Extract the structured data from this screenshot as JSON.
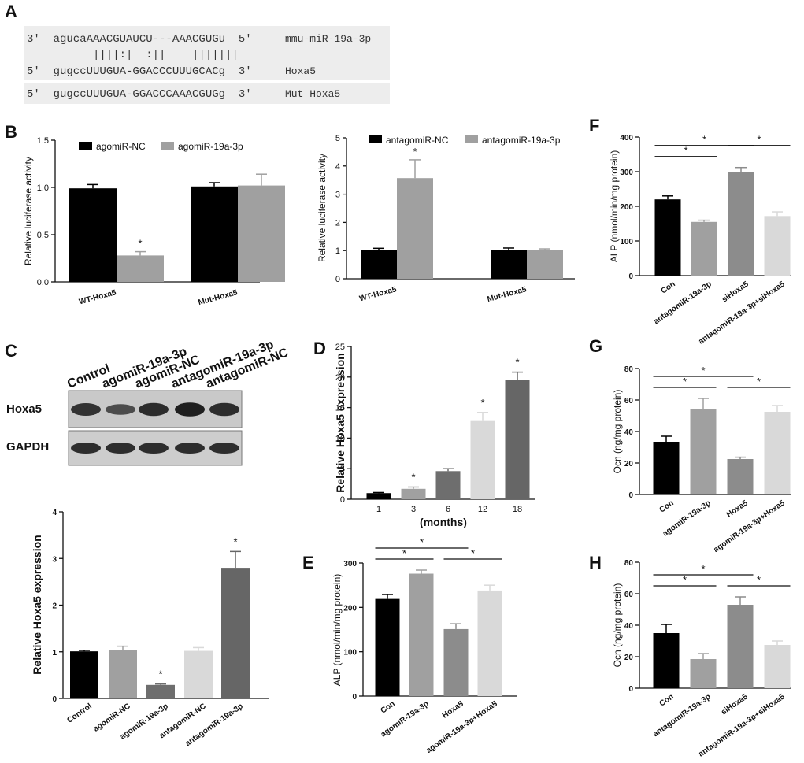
{
  "panels": {
    "a": "A",
    "b": "B",
    "c": "C",
    "d": "D",
    "e": "E",
    "f": "F",
    "g": "G",
    "h": "H"
  },
  "sequence": {
    "mir_line": "3'  agucaAAACGUAUCU---AAACGUGu  5'",
    "mir_label": "mmu-miR-19a-3p",
    "pairing": "||||:|  :||    |||||||",
    "wt_line": "5'  gugccUUUGUA-GGACCCUUUGCACg  3'",
    "wt_label": "Hoxa5",
    "mut_line": "5'  gugccUUUGUA-GGACCCAAACGUGg  3'",
    "mut_label": "Mut Hoxa5"
  },
  "blot": {
    "columns": [
      "Control",
      "agomiR-19a-3p",
      "agomiR-NC",
      "antagomiR-19a-3p",
      "antagomiR-NC"
    ],
    "rows": [
      "Hoxa5",
      "GAPDH"
    ],
    "hoxa5_intensity": [
      0.75,
      0.45,
      0.8,
      0.95,
      0.8
    ],
    "gapdh_intensity": [
      0.8,
      0.8,
      0.8,
      0.8,
      0.8
    ]
  },
  "colors": {
    "black": "#000000",
    "gray": "#a0a0a0",
    "dark_gray": "#6e6e6e",
    "mid_gray": "#8c8c8c",
    "light_gray": "#d9d9d9",
    "light_gray2": "#e6e6e6"
  },
  "chart_data": [
    {
      "id": "b1",
      "type": "bar",
      "categories": [
        "WT-Hoxa5",
        "Mut-Hoxa5"
      ],
      "series": [
        {
          "name": "agomiR-NC",
          "values": [
            0.99,
            1.01
          ],
          "errors": [
            0.04,
            0.04
          ],
          "color": "#000000"
        },
        {
          "name": "agomiR-19a-3p",
          "values": [
            0.28,
            1.02
          ],
          "errors": [
            0.04,
            0.12
          ],
          "color": "#a0a0a0"
        }
      ],
      "stars": [
        "",
        "*",
        "",
        ""
      ],
      "ylabel": "Relative luciferase activity",
      "ylim": [
        0,
        1.5
      ],
      "yticks": [
        "0.0",
        "0.5",
        "1.0",
        "1.5"
      ],
      "legend": "top"
    },
    {
      "id": "b2",
      "type": "bar",
      "categories": [
        "WT-Hoxa5",
        "Mut-Hoxa5"
      ],
      "series": [
        {
          "name": "antagomiR-NC",
          "values": [
            1.03,
            1.03
          ],
          "errors": [
            0.05,
            0.06
          ],
          "color": "#000000"
        },
        {
          "name": "antagomiR-19a-3p",
          "values": [
            3.57,
            1.02
          ],
          "errors": [
            0.65,
            0.04
          ],
          "color": "#a0a0a0"
        }
      ],
      "stars": [
        "",
        "*",
        "",
        ""
      ],
      "ylabel": "Relative luciferase activity",
      "ylim": [
        0,
        5
      ],
      "yticks": [
        "0",
        "1",
        "2",
        "3",
        "4",
        "5"
      ],
      "legend": "top"
    },
    {
      "id": "c",
      "type": "bar",
      "categories": [
        "Control",
        "agomiR-NC",
        "agomiR-19a-3p",
        "antagomiR-NC",
        "antagomiR-19a-3p"
      ],
      "values": [
        1.01,
        1.04,
        0.29,
        1.02,
        2.8
      ],
      "errors": [
        0.02,
        0.08,
        0.02,
        0.07,
        0.35
      ],
      "colors": [
        "#000000",
        "#a0a0a0",
        "#6e6e6e",
        "#d9d9d9",
        "#666666"
      ],
      "stars": [
        "",
        "",
        "*",
        "",
        "*"
      ],
      "ylabel": "Relative Hoxa5 expression",
      "ylim": [
        0,
        4
      ],
      "yticks": [
        "0",
        "1",
        "2",
        "3",
        "4"
      ]
    },
    {
      "id": "d",
      "type": "bar",
      "categories": [
        "1",
        "3",
        "6",
        "12",
        "18"
      ],
      "values": [
        1.0,
        1.7,
        4.6,
        12.8,
        19.5
      ],
      "errors": [
        0.1,
        0.3,
        0.4,
        1.4,
        1.3
      ],
      "colors": [
        "#000000",
        "#a0a0a0",
        "#6e6e6e",
        "#d9d9d9",
        "#666666"
      ],
      "stars": [
        "",
        "*",
        "",
        "*",
        "*"
      ],
      "xlabel": "(months)",
      "ylabel": "Relative Hoxa5 expression",
      "ylim": [
        0,
        25
      ],
      "yticks": [
        "0",
        "5",
        "10",
        "15",
        "20",
        "25"
      ]
    },
    {
      "id": "e",
      "type": "bar",
      "categories": [
        "Con",
        "agomiR-19a-3p",
        "Hoxa5",
        "agomiR-19a-3p+Hoxa5"
      ],
      "values": [
        219,
        276,
        151,
        238
      ],
      "errors": [
        10,
        8,
        12,
        12
      ],
      "colors": [
        "#000000",
        "#a0a0a0",
        "#8c8c8c",
        "#d9d9d9"
      ],
      "brackets": [
        [
          0,
          1,
          0
        ],
        [
          0,
          2,
          1
        ],
        [
          2,
          3,
          0
        ]
      ],
      "bracket_label": "*",
      "ylabel": "ALP (nmol/min/mg protein)",
      "ylim": [
        0,
        300
      ],
      "yticks": [
        "0",
        "100",
        "200",
        "300"
      ]
    },
    {
      "id": "f",
      "type": "bar",
      "categories": [
        "Con",
        "antagomiR-19a-3p",
        "siHoxa5",
        "antagomiR-19a-3p+siHoxa5"
      ],
      "values": [
        220,
        155,
        300,
        172
      ],
      "errors": [
        10,
        5,
        12,
        12
      ],
      "colors": [
        "#000000",
        "#a0a0a0",
        "#8c8c8c",
        "#d9d9d9"
      ],
      "brackets": [
        [
          0,
          1,
          0
        ],
        [
          0,
          2,
          1
        ],
        [
          2,
          3,
          1
        ]
      ],
      "bracket_label": "*",
      "ylabel": "ALP (nmol/min/mg protein)",
      "ylim": [
        0,
        400
      ],
      "yticks": [
        "0",
        "100",
        "200",
        "300",
        "400"
      ]
    },
    {
      "id": "g",
      "type": "bar",
      "categories": [
        "Con",
        "agomiR-19a-3p",
        "Hoxa5",
        "agomiR-19a-3p+Hoxa5"
      ],
      "values": [
        33.5,
        54,
        22.5,
        52.5
      ],
      "errors": [
        3.5,
        7,
        1.2,
        4
      ],
      "colors": [
        "#000000",
        "#a0a0a0",
        "#8c8c8c",
        "#d9d9d9"
      ],
      "brackets": [
        [
          0,
          1,
          0
        ],
        [
          0,
          2,
          1
        ],
        [
          2,
          3,
          0
        ]
      ],
      "bracket_label": "*",
      "ylabel": "Ocn (ng/mg protein)",
      "ylim": [
        0,
        80
      ],
      "yticks": [
        "0",
        "20",
        "40",
        "60",
        "80"
      ]
    },
    {
      "id": "h",
      "type": "bar",
      "categories": [
        "Con",
        "antagomiR-19a-3p",
        "siHoxa5",
        "antagomiR-19a-3p+siHoxa5"
      ],
      "values": [
        35,
        18.5,
        53,
        27.5
      ],
      "errors": [
        5.5,
        3.5,
        5,
        2.5
      ],
      "colors": [
        "#000000",
        "#a0a0a0",
        "#8c8c8c",
        "#d9d9d9"
      ],
      "brackets": [
        [
          0,
          1,
          0
        ],
        [
          0,
          2,
          1
        ],
        [
          2,
          3,
          0
        ]
      ],
      "bracket_label": "*",
      "ylabel": "Ocn (ng/mg protein)",
      "ylim": [
        0,
        80
      ],
      "yticks": [
        "0",
        "20",
        "40",
        "60",
        "80"
      ]
    }
  ]
}
